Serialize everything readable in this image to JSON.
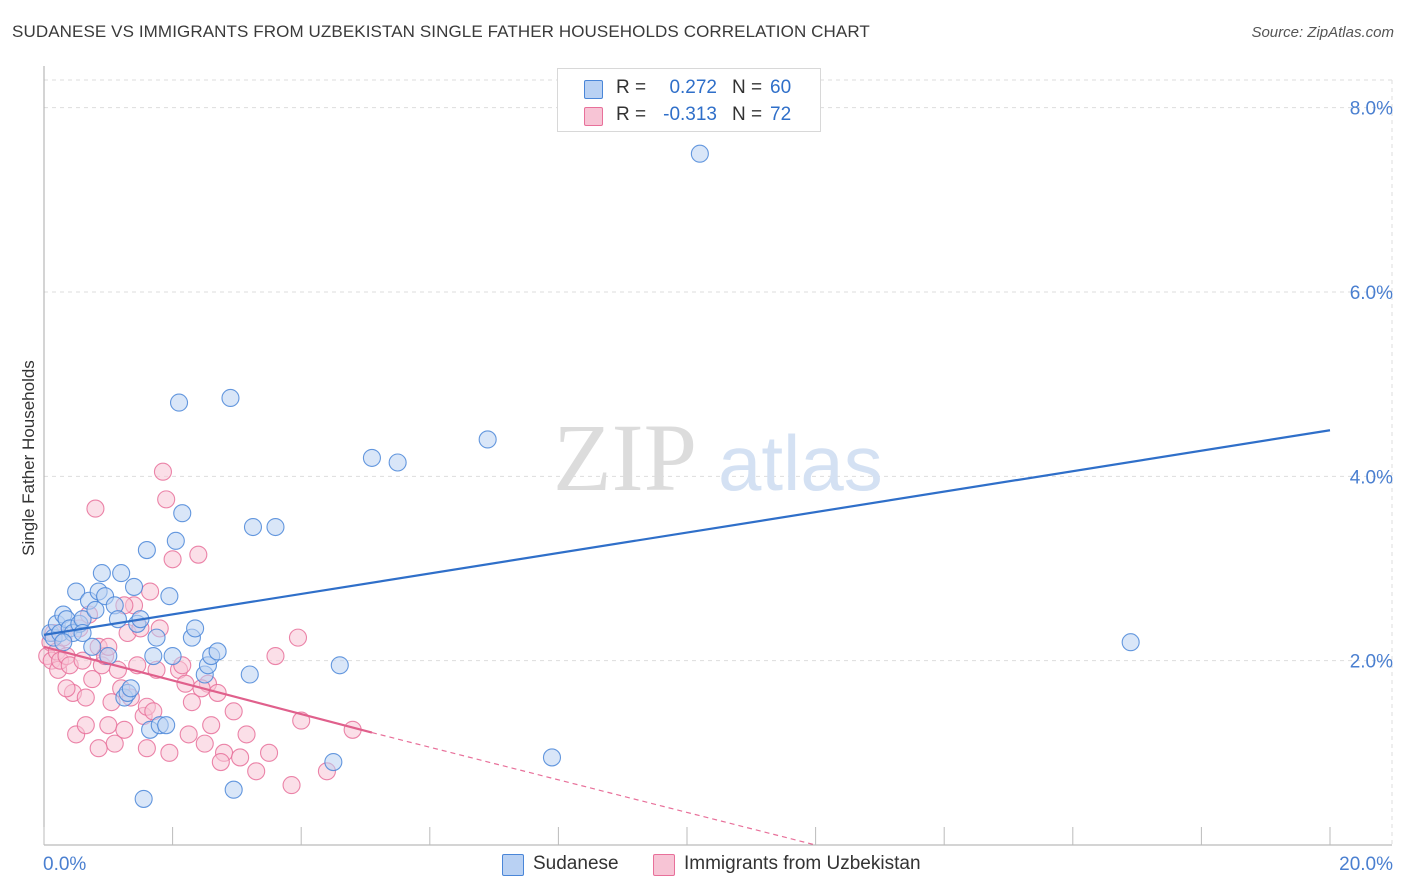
{
  "header": {
    "title": "SUDANESE VS IMMIGRANTS FROM UZBEKISTAN SINGLE FATHER HOUSEHOLDS CORRELATION CHART",
    "source": "Source: ZipAtlas.com"
  },
  "watermark": {
    "part1": "ZIP",
    "part2": "atlas"
  },
  "colors": {
    "blue": "#4a86d8",
    "blue_fill": "#b9d1f3",
    "pink": "#e8709a",
    "pink_fill": "#f7c4d5",
    "tick_text": "#4a7fd0",
    "grid": "#dddddd"
  },
  "legend": {
    "rows": [
      {
        "r_label": "R =",
        "r_value": "0.272",
        "n_label": "N =",
        "n_value": "60"
      },
      {
        "r_label": "R =",
        "r_value": "-0.313",
        "n_label": "N =",
        "n_value": "72"
      }
    ]
  },
  "bottom_legend": [
    "Sudanese",
    "Immigrants from Uzbekistan"
  ],
  "chart_data": {
    "type": "scatter",
    "title": "SUDANESE VS IMMIGRANTS FROM UZBEKISTAN SINGLE FATHER HOUSEHOLDS CORRELATION CHART",
    "xlabel": "",
    "ylabel": "Single Father Households",
    "xlim": [
      0,
      20
    ],
    "ylim": [
      0,
      8.3
    ],
    "x_tick_labels": [
      "0.0%",
      "20.0%"
    ],
    "y_ticks": [
      2,
      4,
      6,
      8
    ],
    "y_tick_labels": [
      "2.0%",
      "4.0%",
      "6.0%",
      "8.0%"
    ],
    "grid": true,
    "series": [
      {
        "name": "Sudanese",
        "r": 0.272,
        "n": 60,
        "trend": {
          "x": [
            0,
            20
          ],
          "y": [
            2.28,
            4.5
          ],
          "style": "solid"
        },
        "points": [
          [
            0.1,
            2.3
          ],
          [
            0.15,
            2.25
          ],
          [
            0.2,
            2.4
          ],
          [
            0.25,
            2.3
          ],
          [
            0.3,
            2.5
          ],
          [
            0.35,
            2.45
          ],
          [
            0.4,
            2.35
          ],
          [
            0.45,
            2.3
          ],
          [
            0.5,
            2.75
          ],
          [
            0.55,
            2.4
          ],
          [
            0.6,
            2.45
          ],
          [
            0.7,
            2.65
          ],
          [
            0.75,
            2.15
          ],
          [
            0.8,
            2.55
          ],
          [
            0.85,
            2.75
          ],
          [
            0.9,
            2.95
          ],
          [
            0.95,
            2.7
          ],
          [
            1.0,
            2.05
          ],
          [
            1.1,
            2.6
          ],
          [
            1.15,
            2.45
          ],
          [
            1.2,
            2.95
          ],
          [
            1.25,
            1.6
          ],
          [
            1.3,
            1.65
          ],
          [
            1.35,
            1.7
          ],
          [
            1.4,
            2.8
          ],
          [
            1.45,
            2.4
          ],
          [
            1.5,
            2.45
          ],
          [
            1.55,
            0.5
          ],
          [
            1.6,
            3.2
          ],
          [
            1.65,
            1.25
          ],
          [
            1.7,
            2.05
          ],
          [
            1.75,
            2.25
          ],
          [
            1.8,
            1.3
          ],
          [
            1.9,
            1.3
          ],
          [
            1.95,
            2.7
          ],
          [
            2.0,
            2.05
          ],
          [
            2.05,
            3.3
          ],
          [
            2.1,
            4.8
          ],
          [
            2.15,
            3.6
          ],
          [
            2.3,
            2.25
          ],
          [
            2.35,
            2.35
          ],
          [
            2.5,
            1.85
          ],
          [
            2.55,
            1.95
          ],
          [
            2.6,
            2.05
          ],
          [
            2.7,
            2.1
          ],
          [
            2.9,
            4.85
          ],
          [
            2.95,
            0.6
          ],
          [
            3.2,
            1.85
          ],
          [
            3.25,
            3.45
          ],
          [
            3.6,
            3.45
          ],
          [
            4.5,
            0.9
          ],
          [
            4.6,
            1.95
          ],
          [
            5.1,
            4.2
          ],
          [
            5.5,
            4.15
          ],
          [
            6.9,
            4.4
          ],
          [
            7.9,
            0.95
          ],
          [
            10.2,
            7.5
          ],
          [
            16.9,
            2.2
          ],
          [
            0.3,
            2.2
          ],
          [
            0.6,
            2.3
          ]
        ]
      },
      {
        "name": "Immigrants from Uzbekistan",
        "r": -0.313,
        "n": 72,
        "trend": {
          "x": [
            0,
            5.1
          ],
          "y": [
            2.15,
            1.22
          ],
          "style": "solid",
          "dashed_extension": {
            "x": [
              5.1,
              12
            ],
            "y": [
              1.22,
              0.0
            ]
          }
        },
        "points": [
          [
            0.05,
            2.05
          ],
          [
            0.1,
            2.2
          ],
          [
            0.12,
            2.0
          ],
          [
            0.15,
            2.3
          ],
          [
            0.2,
            2.1
          ],
          [
            0.22,
            1.9
          ],
          [
            0.25,
            2.0
          ],
          [
            0.3,
            2.25
          ],
          [
            0.35,
            2.05
          ],
          [
            0.4,
            1.95
          ],
          [
            0.45,
            1.65
          ],
          [
            0.5,
            1.2
          ],
          [
            0.55,
            2.35
          ],
          [
            0.6,
            2.0
          ],
          [
            0.65,
            1.6
          ],
          [
            0.7,
            2.5
          ],
          [
            0.75,
            1.8
          ],
          [
            0.8,
            3.65
          ],
          [
            0.85,
            2.15
          ],
          [
            0.9,
            1.95
          ],
          [
            0.95,
            2.05
          ],
          [
            1.0,
            1.3
          ],
          [
            1.05,
            1.55
          ],
          [
            1.1,
            1.1
          ],
          [
            1.15,
            1.9
          ],
          [
            1.2,
            1.7
          ],
          [
            1.25,
            1.25
          ],
          [
            1.3,
            2.3
          ],
          [
            1.35,
            1.6
          ],
          [
            1.4,
            2.6
          ],
          [
            1.45,
            1.95
          ],
          [
            1.5,
            2.35
          ],
          [
            1.55,
            1.4
          ],
          [
            1.6,
            1.5
          ],
          [
            1.65,
            2.75
          ],
          [
            1.7,
            1.45
          ],
          [
            1.75,
            1.9
          ],
          [
            1.8,
            2.35
          ],
          [
            1.85,
            4.05
          ],
          [
            1.9,
            3.75
          ],
          [
            1.95,
            1.0
          ],
          [
            2.0,
            3.1
          ],
          [
            2.1,
            1.9
          ],
          [
            2.2,
            1.75
          ],
          [
            2.25,
            1.2
          ],
          [
            2.3,
            1.55
          ],
          [
            2.4,
            3.15
          ],
          [
            2.5,
            1.1
          ],
          [
            2.55,
            1.75
          ],
          [
            2.6,
            1.3
          ],
          [
            2.7,
            1.65
          ],
          [
            2.8,
            1.0
          ],
          [
            2.95,
            1.45
          ],
          [
            3.05,
            0.95
          ],
          [
            3.15,
            1.2
          ],
          [
            3.3,
            0.8
          ],
          [
            3.6,
            2.05
          ],
          [
            3.85,
            0.65
          ],
          [
            3.95,
            2.25
          ],
          [
            4.0,
            1.35
          ],
          [
            4.4,
            0.8
          ],
          [
            4.8,
            1.25
          ],
          [
            0.35,
            1.7
          ],
          [
            0.65,
            1.3
          ],
          [
            0.85,
            1.05
          ],
          [
            1.0,
            2.15
          ],
          [
            1.25,
            2.6
          ],
          [
            1.6,
            1.05
          ],
          [
            2.15,
            1.95
          ],
          [
            2.45,
            1.7
          ],
          [
            2.75,
            0.9
          ],
          [
            3.5,
            1.0
          ]
        ]
      }
    ]
  }
}
